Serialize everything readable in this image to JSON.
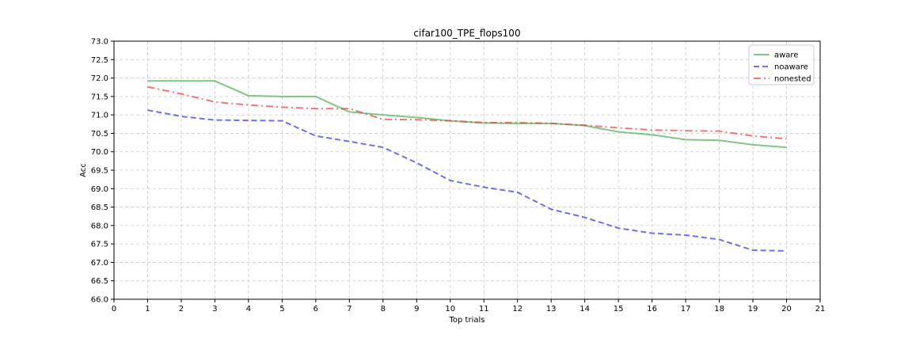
{
  "chart_data": {
    "type": "line",
    "title": "cifar100_TPE_flops100",
    "xlabel": "Top trials",
    "ylabel": "Acc",
    "xlim": [
      0,
      21
    ],
    "ylim": [
      66.0,
      73.0
    ],
    "xticks": [
      0,
      1,
      2,
      3,
      4,
      5,
      6,
      7,
      8,
      9,
      10,
      11,
      12,
      13,
      14,
      15,
      16,
      17,
      18,
      19,
      20,
      21
    ],
    "yticks": [
      "66.0",
      "66.5",
      "67.0",
      "67.5",
      "68.0",
      "68.5",
      "69.0",
      "69.5",
      "70.0",
      "70.5",
      "71.0",
      "71.5",
      "72.0",
      "72.5",
      "73.0"
    ],
    "grid": true,
    "legend_position": "top-right",
    "x": [
      1,
      2,
      3,
      4,
      5,
      6,
      7,
      8,
      9,
      10,
      11,
      12,
      13,
      14,
      15,
      16,
      17,
      18,
      19,
      20
    ],
    "series": [
      {
        "name": "aware",
        "color": "#4caf50",
        "style": "solid",
        "values": [
          71.92,
          71.92,
          71.92,
          71.52,
          71.5,
          71.5,
          71.08,
          71.0,
          70.93,
          70.84,
          70.78,
          70.77,
          70.77,
          70.71,
          70.54,
          70.46,
          70.33,
          70.31,
          70.19,
          70.12
        ]
      },
      {
        "name": "noaware",
        "color": "#3333e6",
        "style": "dashed",
        "values": [
          71.13,
          70.96,
          70.86,
          70.85,
          70.84,
          70.43,
          70.28,
          70.12,
          69.7,
          69.22,
          69.04,
          68.9,
          68.44,
          68.22,
          67.93,
          67.79,
          67.74,
          67.62,
          67.33,
          67.31
        ]
      },
      {
        "name": "nonested",
        "color": "#f03c3c",
        "style": "dashdot",
        "values": [
          71.76,
          71.57,
          71.35,
          71.27,
          71.21,
          71.17,
          71.17,
          70.88,
          70.87,
          70.84,
          70.79,
          70.79,
          70.77,
          70.72,
          70.65,
          70.59,
          70.57,
          70.56,
          70.43,
          70.35
        ]
      }
    ]
  }
}
